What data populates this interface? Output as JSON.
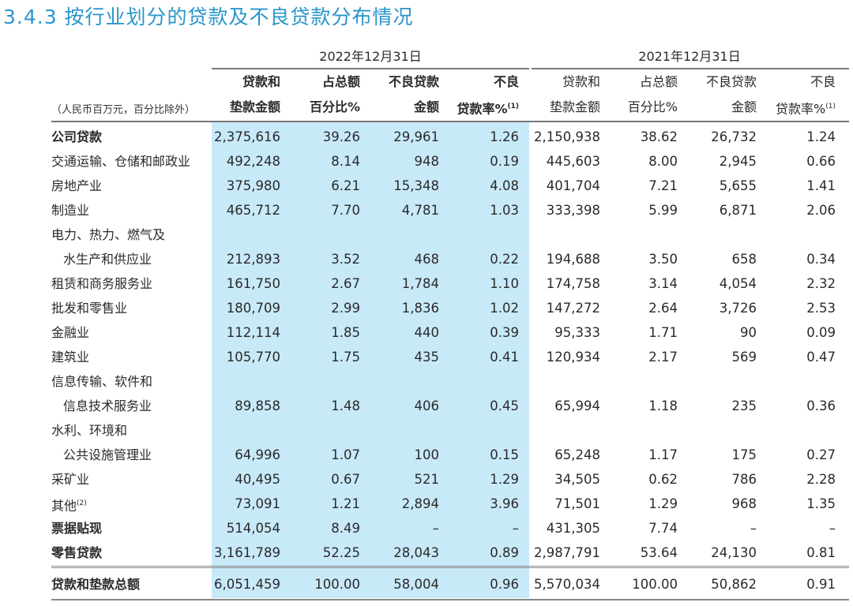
{
  "title": "3.4.3 按行业划分的贷款及不良贷款分布情况",
  "unit_note": "（人民币百万元，百分比除外）",
  "periods": [
    "2022年12月31日",
    "2021年12月31日"
  ],
  "column_headers": [
    [
      "贷款和",
      "垫款金额"
    ],
    [
      "占总额",
      "百分比%"
    ],
    [
      "不良贷款",
      "金额"
    ],
    [
      "不良",
      "贷款率%",
      "(1)"
    ]
  ],
  "colors": {
    "title": "#2a95cc",
    "highlight_band": "#c8e9f8"
  },
  "rows": [
    {
      "label": "公司贷款",
      "bold": true,
      "values": [
        "2,375,616",
        "39.26",
        "29,961",
        "1.26",
        "2,150,938",
        "38.62",
        "26,732",
        "1.24"
      ]
    },
    {
      "label": "交通运输、仓储和邮政业",
      "values": [
        "492,248",
        "8.14",
        "948",
        "0.19",
        "445,603",
        "8.00",
        "2,945",
        "0.66"
      ]
    },
    {
      "label": "房地产业",
      "values": [
        "375,980",
        "6.21",
        "15,348",
        "4.08",
        "401,704",
        "7.21",
        "5,655",
        "1.41"
      ]
    },
    {
      "label": "制造业",
      "values": [
        "465,712",
        "7.70",
        "4,781",
        "1.03",
        "333,398",
        "5.99",
        "6,871",
        "2.06"
      ]
    },
    {
      "label": "电力、热力、燃气及",
      "values": []
    },
    {
      "label": "水生产和供应业",
      "indent": true,
      "values": [
        "212,893",
        "3.52",
        "468",
        "0.22",
        "194,688",
        "3.50",
        "658",
        "0.34"
      ]
    },
    {
      "label": "租赁和商务服务业",
      "values": [
        "161,750",
        "2.67",
        "1,784",
        "1.10",
        "174,758",
        "3.14",
        "4,054",
        "2.32"
      ]
    },
    {
      "label": "批发和零售业",
      "values": [
        "180,709",
        "2.99",
        "1,836",
        "1.02",
        "147,272",
        "2.64",
        "3,726",
        "2.53"
      ]
    },
    {
      "label": "金融业",
      "values": [
        "112,114",
        "1.85",
        "440",
        "0.39",
        "95,333",
        "1.71",
        "90",
        "0.09"
      ]
    },
    {
      "label": "建筑业",
      "values": [
        "105,770",
        "1.75",
        "435",
        "0.41",
        "120,934",
        "2.17",
        "569",
        "0.47"
      ]
    },
    {
      "label": "信息传输、软件和",
      "values": []
    },
    {
      "label": "信息技术服务业",
      "indent": true,
      "values": [
        "89,858",
        "1.48",
        "406",
        "0.45",
        "65,994",
        "1.18",
        "235",
        "0.36"
      ]
    },
    {
      "label": "水利、环境和",
      "values": []
    },
    {
      "label": "公共设施管理业",
      "indent": true,
      "values": [
        "64,996",
        "1.07",
        "100",
        "0.15",
        "65,248",
        "1.17",
        "175",
        "0.27"
      ]
    },
    {
      "label": "采矿业",
      "values": [
        "40,495",
        "0.67",
        "521",
        "1.29",
        "34,505",
        "0.62",
        "786",
        "2.28"
      ]
    },
    {
      "label": "其他",
      "note": "(2)",
      "values": [
        "73,091",
        "1.21",
        "2,894",
        "3.96",
        "71,501",
        "1.29",
        "968",
        "1.35"
      ]
    },
    {
      "label": "票据贴现",
      "bold": true,
      "values": [
        "514,054",
        "8.49",
        "–",
        "–",
        "431,305",
        "7.74",
        "–",
        "–"
      ]
    },
    {
      "label": "零售贷款",
      "bold": true,
      "values": [
        "3,161,789",
        "52.25",
        "28,043",
        "0.89",
        "2,987,791",
        "53.64",
        "24,130",
        "0.81"
      ]
    }
  ],
  "total": {
    "label": "贷款和垫款总额",
    "bold": true,
    "values": [
      "6,051,459",
      "100.00",
      "58,004",
      "0.96",
      "5,570,034",
      "100.00",
      "50,862",
      "0.91"
    ]
  }
}
